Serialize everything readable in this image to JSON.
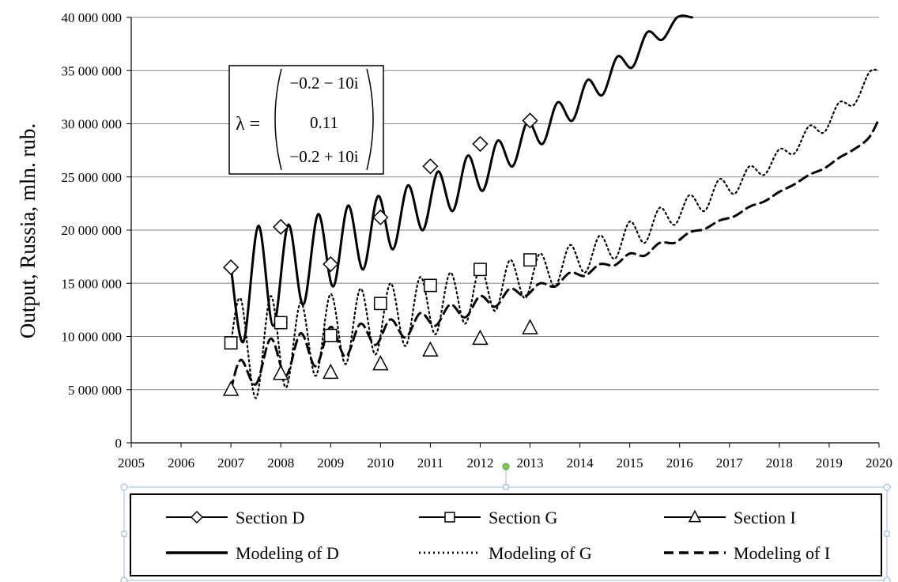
{
  "chart_data": {
    "type": "line",
    "title": "",
    "xlabel": "",
    "ylabel": "Output, Russia, mln. rub.",
    "xlim": [
      2005,
      2020
    ],
    "ylim": [
      0,
      40000000
    ],
    "x_ticks": [
      2005,
      2006,
      2007,
      2008,
      2009,
      2010,
      2011,
      2012,
      2013,
      2014,
      2015,
      2016,
      2017,
      2018,
      2019,
      2020
    ],
    "x_tick_labels": [
      "2005",
      "2006",
      "2007",
      "2008",
      "2009",
      "2010",
      "2011",
      "2012",
      "2013",
      "2014",
      "2015",
      "2016",
      "2017",
      "2018",
      "2019",
      "2020"
    ],
    "y_ticks": [
      0,
      5000000,
      10000000,
      15000000,
      20000000,
      25000000,
      30000000,
      35000000,
      40000000
    ],
    "y_tick_labels": [
      "0",
      "5 000 000",
      "10 000 000",
      "15 000 000",
      "20 000 000",
      "25 000 000",
      "30 000 000",
      "35 000 000",
      "40 000 000"
    ],
    "grid": "horizontal",
    "legend_position": "bottom",
    "series": [
      {
        "name": "Section D",
        "kind": "markers",
        "marker": "diamond",
        "x": [
          2007,
          2008,
          2009,
          2010,
          2011,
          2012,
          2013
        ],
        "y": [
          16500000,
          20300000,
          16800000,
          21200000,
          26000000,
          28100000,
          30300000
        ]
      },
      {
        "name": "Section G",
        "kind": "markers",
        "marker": "square",
        "x": [
          2007,
          2008,
          2009,
          2010,
          2011,
          2012,
          2013
        ],
        "y": [
          9400000,
          11300000,
          10100000,
          13100000,
          14800000,
          16300000,
          17200000
        ]
      },
      {
        "name": "Section I",
        "kind": "markers",
        "marker": "triangle",
        "x": [
          2007,
          2008,
          2009,
          2010,
          2011,
          2012,
          2013
        ],
        "y": [
          5000000,
          6500000,
          6600000,
          7400000,
          8700000,
          9800000,
          10800000
        ]
      },
      {
        "name": "Modeling of D",
        "kind": "line",
        "dash": "solid",
        "x": [
          2007.0,
          2007.25,
          2007.55,
          2007.85,
          2008.15,
          2008.45,
          2008.75,
          2009.05,
          2009.35,
          2009.65,
          2009.95,
          2010.25,
          2010.55,
          2010.85,
          2011.15,
          2011.45,
          2011.75,
          2012.05,
          2012.35,
          2012.65,
          2012.95,
          2013.25,
          2013.55,
          2013.85,
          2014.15,
          2014.45,
          2014.75,
          2015.05,
          2015.35,
          2015.65,
          2015.95,
          2016.25
        ],
        "y": [
          16500000,
          9500000,
          20400000,
          11000000,
          20500000,
          13000000,
          21500000,
          14700000,
          22300000,
          16300000,
          23200000,
          18200000,
          24200000,
          20000000,
          25500000,
          21800000,
          27000000,
          23700000,
          28400000,
          26000000,
          30200000,
          28100000,
          32000000,
          30300000,
          34100000,
          32700000,
          36300000,
          35300000,
          38600000,
          37900000,
          40000000,
          40000000
        ]
      },
      {
        "name": "Modeling of G",
        "kind": "line",
        "dash": "dotted",
        "x": [
          2007.0,
          2007.2,
          2007.5,
          2007.8,
          2008.1,
          2008.4,
          2008.7,
          2009.0,
          2009.3,
          2009.6,
          2009.9,
          2010.2,
          2010.5,
          2010.8,
          2011.1,
          2011.4,
          2011.7,
          2012.0,
          2012.3,
          2012.6,
          2012.9,
          2013.2,
          2013.5,
          2013.8,
          2014.1,
          2014.4,
          2014.7,
          2015.0,
          2015.3,
          2015.6,
          2015.9,
          2016.2,
          2016.5,
          2016.8,
          2017.1,
          2017.4,
          2017.7,
          2018.0,
          2018.3,
          2018.6,
          2018.9,
          2019.2,
          2019.5,
          2019.8,
          2020.0
        ],
        "y": [
          9400000,
          13500000,
          4200000,
          13800000,
          5200000,
          13200000,
          6300000,
          14000000,
          7400000,
          14500000,
          8300000,
          15000000,
          9100000,
          15600000,
          10200000,
          16000000,
          11200000,
          16500000,
          12400000,
          17200000,
          13600000,
          17800000,
          14700000,
          18600000,
          16000000,
          19500000,
          17300000,
          20800000,
          18800000,
          22100000,
          20500000,
          23300000,
          21800000,
          24800000,
          23400000,
          26000000,
          25200000,
          27600000,
          27200000,
          29800000,
          29200000,
          32000000,
          31800000,
          34800000,
          35000000
        ]
      },
      {
        "name": "Modeling of I",
        "kind": "line",
        "dash": "dashed",
        "x": [
          2007.0,
          2007.2,
          2007.5,
          2007.8,
          2008.1,
          2008.4,
          2008.7,
          2009.0,
          2009.3,
          2009.6,
          2009.9,
          2010.2,
          2010.5,
          2010.8,
          2011.1,
          2011.4,
          2011.7,
          2012.0,
          2012.3,
          2012.6,
          2012.9,
          2013.2,
          2013.5,
          2013.8,
          2014.1,
          2014.4,
          2014.7,
          2015.0,
          2015.3,
          2015.6,
          2015.9,
          2016.2,
          2016.5,
          2016.8,
          2017.1,
          2017.4,
          2017.7,
          2018.0,
          2018.3,
          2018.6,
          2018.9,
          2019.2,
          2019.5,
          2019.8,
          2020.0
        ],
        "y": [
          5000000,
          7800000,
          5500000,
          9800000,
          6300000,
          10300000,
          7200000,
          10900000,
          8100000,
          11200000,
          9200000,
          11600000,
          9900000,
          12200000,
          11000000,
          13000000,
          11800000,
          13800000,
          12800000,
          14500000,
          13800000,
          15000000,
          14700000,
          16000000,
          15700000,
          16800000,
          16700000,
          17800000,
          17600000,
          18800000,
          18800000,
          19800000,
          20100000,
          20900000,
          21300000,
          22200000,
          22700000,
          23600000,
          24300000,
          25200000,
          25800000,
          26800000,
          27600000,
          28700000,
          30500000
        ]
      }
    ],
    "annotation": {
      "lhs": "λ =",
      "rows": [
        "−0.2 − 10i",
        "0.11",
        "−0.2 + 10i"
      ]
    }
  }
}
